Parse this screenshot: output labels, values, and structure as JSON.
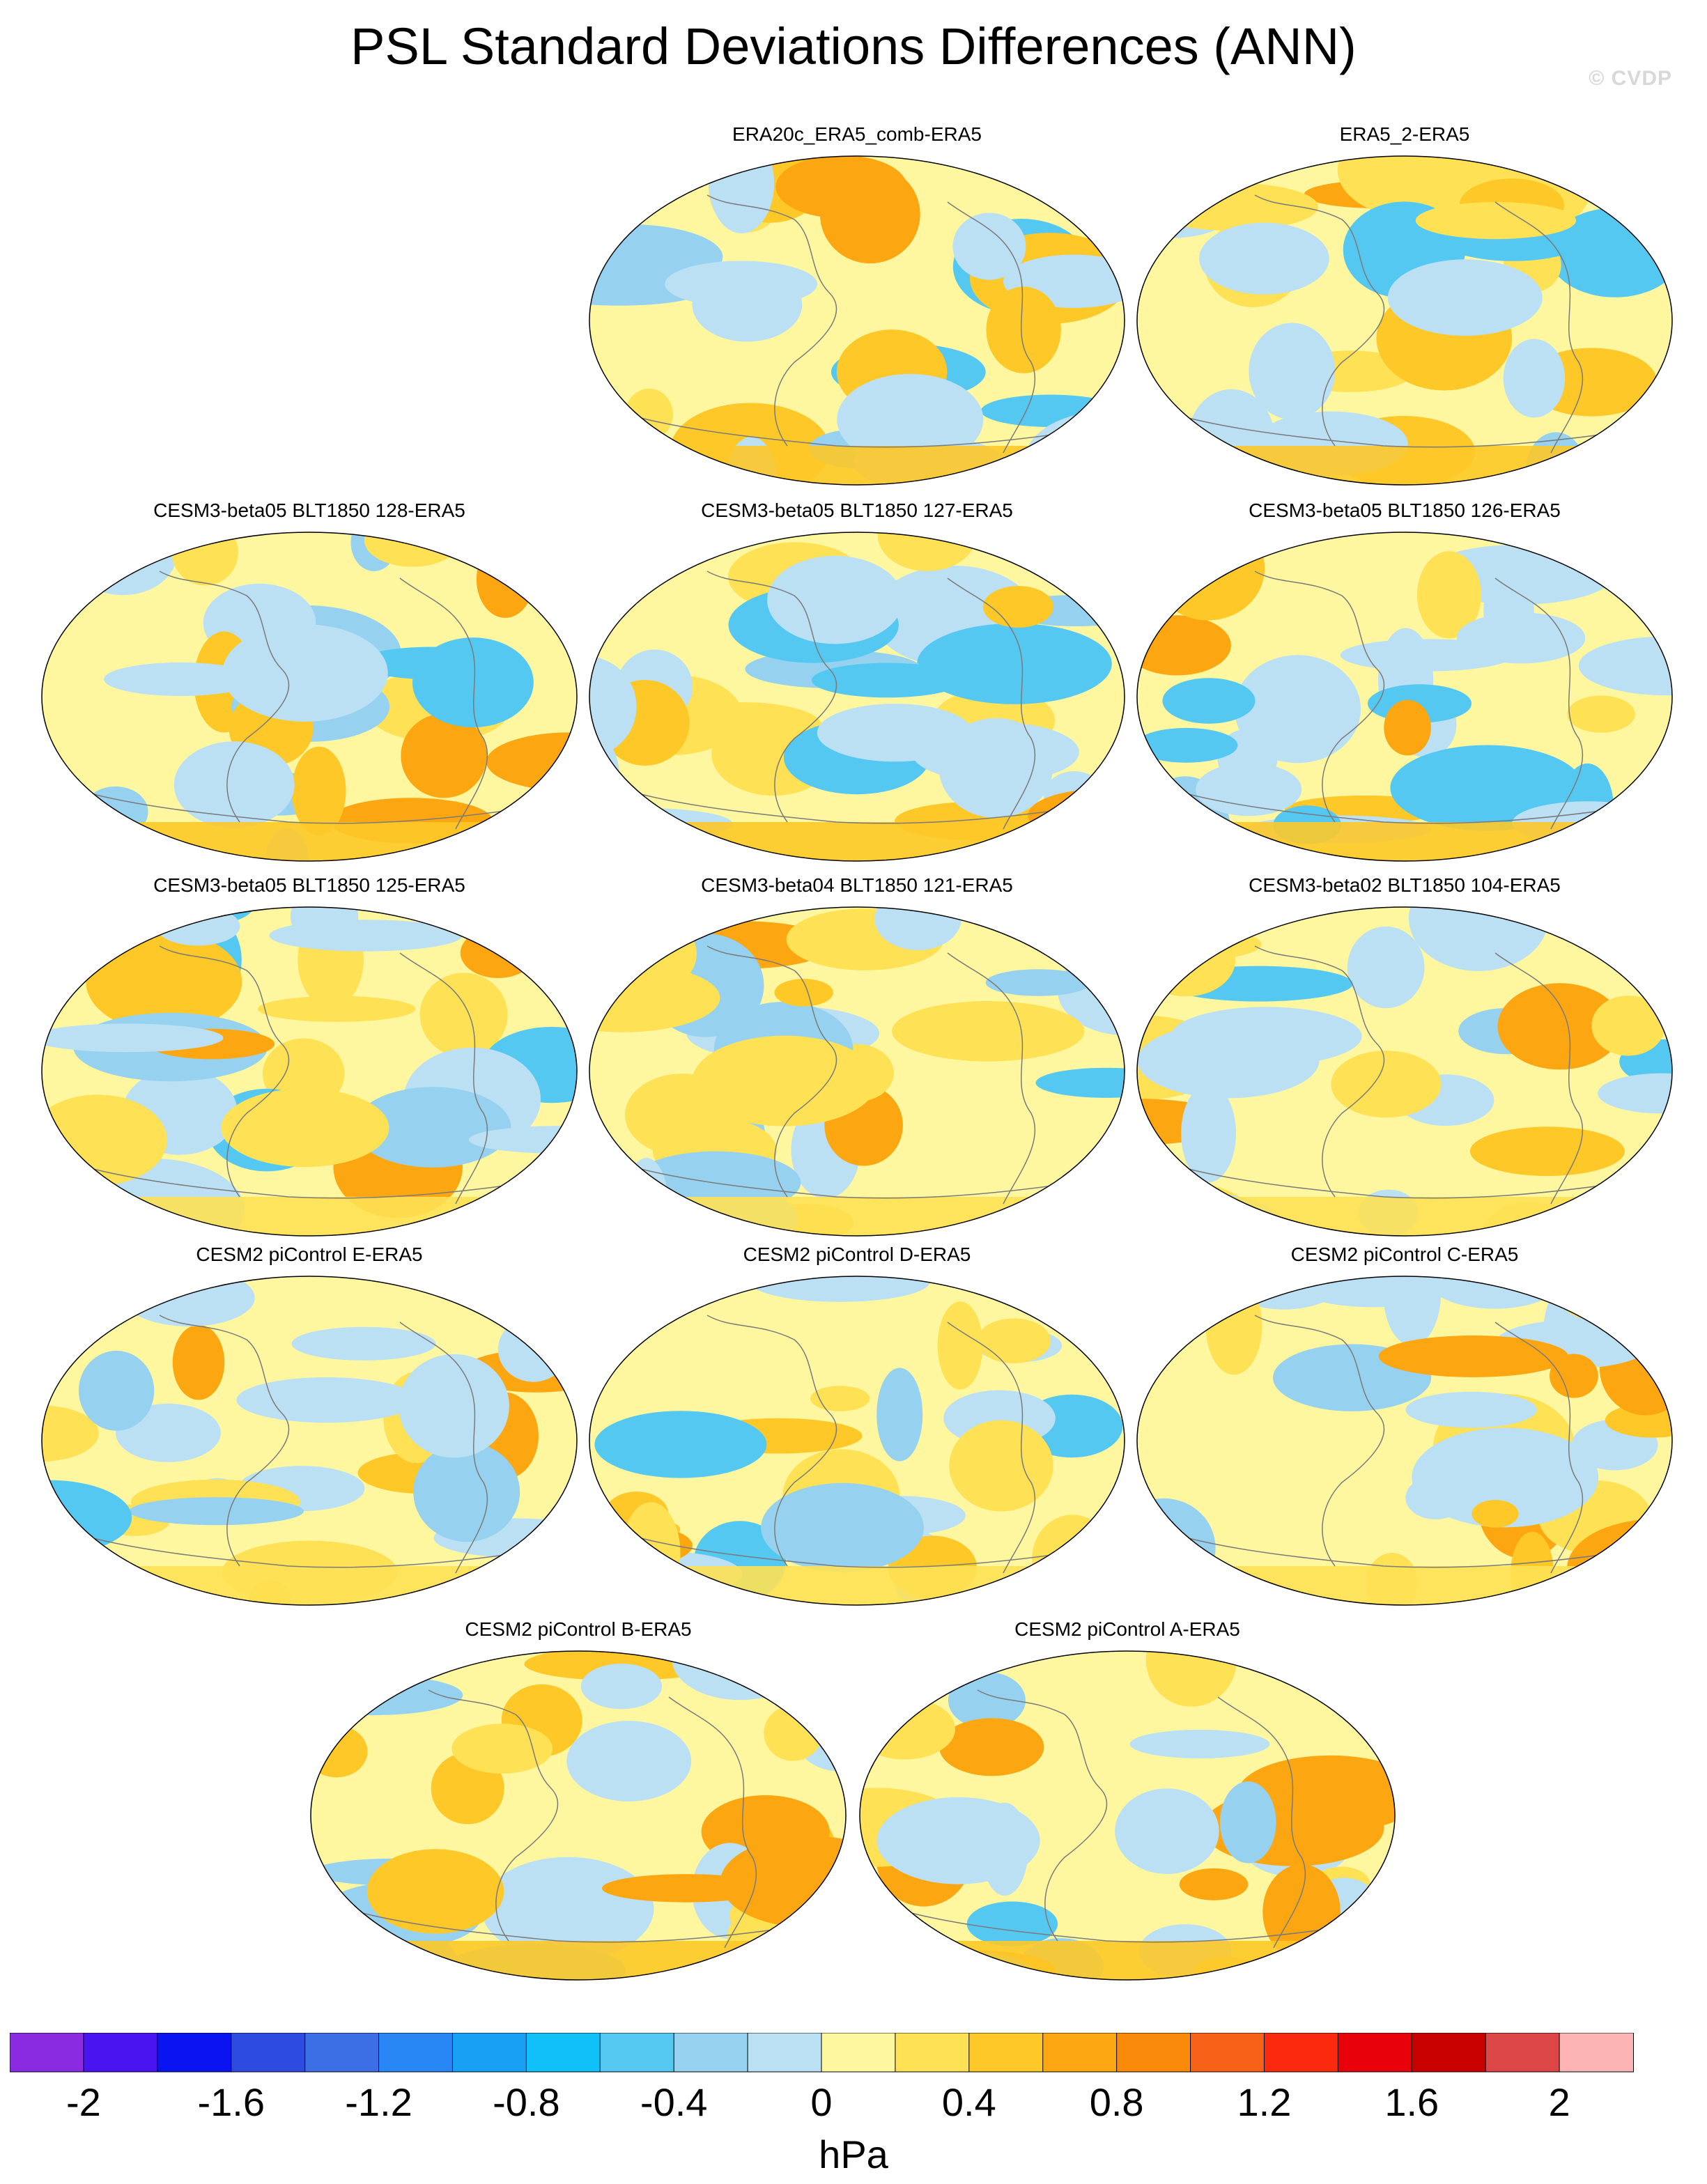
{
  "title": "PSL Standard Deviations Differences (ANN)",
  "watermark": "© CVDP",
  "units": "hPa",
  "colors": {
    "ocean_neutral": "#fff7a0",
    "coast": "#7a7a7a",
    "scale": [
      "#8a2be2",
      "#4a14f0",
      "#0a14f0",
      "#2d4be0",
      "#3c6ee6",
      "#2887f5",
      "#18a0f5",
      "#10c0f8",
      "#55c8f2",
      "#96d2f0",
      "#bbe0f4",
      "#fff7a0",
      "#fee154",
      "#fdc828",
      "#fca712",
      "#fa8a0a",
      "#f76118",
      "#fb2a0e",
      "#e8000a",
      "#c80000",
      "#dc4646",
      "#fcb4b4"
    ]
  },
  "colorbar_ticks": [
    "-2",
    "-1.6",
    "-1.2",
    "-0.8",
    "-0.4",
    "0",
    "0.4",
    "0.8",
    "1.2",
    "1.6",
    "2"
  ],
  "panels": [
    {
      "label": "ERA20c_ERA5_comb-ERA5",
      "seed": 11
    },
    {
      "label": "ERA5_2-ERA5",
      "seed": 23
    },
    {
      "label": "CESM3-beta05 BLT1850 128-ERA5",
      "seed": 37
    },
    {
      "label": "CESM3-beta05 BLT1850 127-ERA5",
      "seed": 41
    },
    {
      "label": "CESM3-beta05 BLT1850 126-ERA5",
      "seed": 53
    },
    {
      "label": "CESM3-beta05 BLT1850 125-ERA5",
      "seed": 67
    },
    {
      "label": "CESM3-beta04 BLT1850 121-ERA5",
      "seed": 71
    },
    {
      "label": "CESM3-beta02 BLT1850 104-ERA5",
      "seed": 83
    },
    {
      "label": "CESM2 piControl E-ERA5",
      "seed": 97
    },
    {
      "label": "CESM2 piControl D-ERA5",
      "seed": 101
    },
    {
      "label": "CESM2 piControl C-ERA5",
      "seed": 113
    },
    {
      "label": "CESM2 piControl B-ERA5",
      "seed": 127
    },
    {
      "label": "CESM2 piControl A-ERA5",
      "seed": 139
    }
  ]
}
